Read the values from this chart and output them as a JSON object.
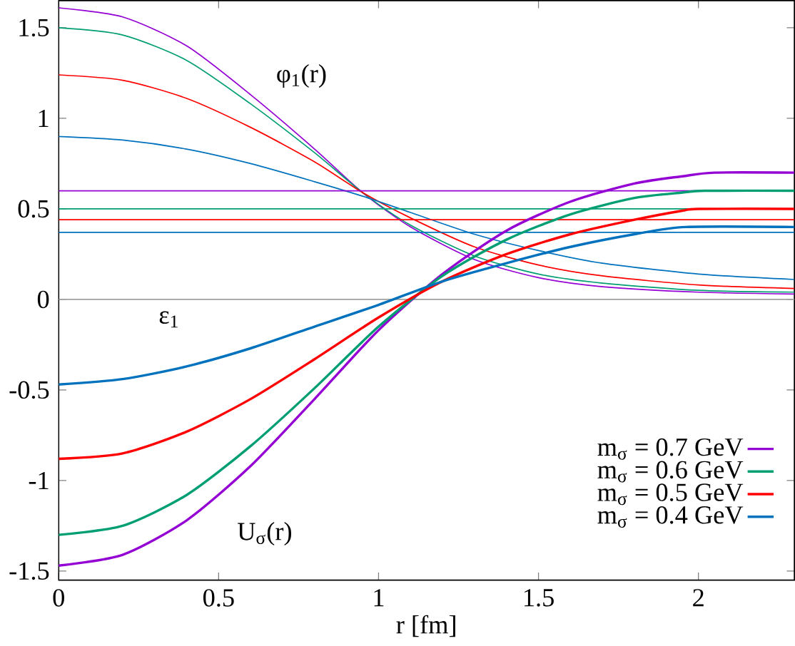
{
  "chart_data": {
    "type": "line",
    "xlabel": "r [fm]",
    "xlim": [
      0,
      2.3
    ],
    "ylim": [
      -1.55,
      1.65
    ],
    "xticks": [
      0,
      0.5,
      1,
      1.5,
      2
    ],
    "yticks": [
      -1.5,
      -1,
      -0.5,
      0,
      0.5,
      1,
      1.5
    ],
    "grid": false,
    "legend": "bottom right",
    "marker": "none",
    "line_style": "solid",
    "ref_lines": [
      {
        "axis": "y",
        "value": 0,
        "color": "#a0a0a0"
      }
    ],
    "annotations": [
      "φ$_{1}$(r)",
      "ε$_{1}$",
      "U$_{σ}$(r)"
    ],
    "series": [
      {
        "color": "#9400d3",
        "x": [
          0,
          0.2,
          0.4,
          0.6,
          0.8,
          0.95,
          1.1,
          1.3,
          1.5,
          1.7,
          2.0,
          2.3
        ],
        "values": [
          1.61,
          1.56,
          1.4,
          1.13,
          0.83,
          0.59,
          0.4,
          0.22,
          0.12,
          0.07,
          0.04,
          0.03
        ]
      },
      {
        "color": "#009e73",
        "x": [
          0,
          0.2,
          0.4,
          0.6,
          0.8,
          0.95,
          1.1,
          1.3,
          1.5,
          1.7,
          2.0,
          2.3
        ],
        "values": [
          1.5,
          1.46,
          1.32,
          1.08,
          0.81,
          0.59,
          0.41,
          0.24,
          0.14,
          0.09,
          0.05,
          0.04
        ]
      },
      {
        "color": "#ff0000",
        "x": [
          0,
          0.2,
          0.4,
          0.6,
          0.8,
          0.95,
          1.1,
          1.3,
          1.5,
          1.7,
          2.0,
          2.3
        ],
        "values": [
          1.24,
          1.21,
          1.11,
          0.95,
          0.76,
          0.59,
          0.45,
          0.29,
          0.19,
          0.13,
          0.08,
          0.06
        ]
      },
      {
        "color": "#0072bd",
        "x": [
          0,
          0.2,
          0.4,
          0.6,
          0.8,
          0.95,
          1.1,
          1.3,
          1.5,
          1.7,
          2.0,
          2.3
        ],
        "values": [
          0.9,
          0.88,
          0.83,
          0.75,
          0.65,
          0.57,
          0.48,
          0.36,
          0.27,
          0.2,
          0.14,
          0.11
        ]
      },
      {
        "color": "#9400d3",
        "x": [
          0,
          2.3
        ],
        "values": [
          0.6,
          0.6
        ]
      },
      {
        "color": "#009e73",
        "x": [
          0,
          2.3
        ],
        "values": [
          0.5,
          0.5
        ]
      },
      {
        "color": "#ff0000",
        "x": [
          0,
          2.3
        ],
        "values": [
          0.44,
          0.44
        ]
      },
      {
        "color": "#0072bd",
        "x": [
          0,
          2.3
        ],
        "values": [
          0.37,
          0.37
        ]
      },
      {
        "name": "m$_{σ}$ = 0.7 GeV",
        "color": "#9400d3",
        "x": [
          0,
          0.2,
          0.4,
          0.6,
          0.8,
          1.0,
          1.2,
          1.4,
          1.6,
          1.8,
          1.95,
          2.05,
          2.3
        ],
        "values": [
          -1.47,
          -1.41,
          -1.22,
          -0.92,
          -0.55,
          -0.17,
          0.14,
          0.38,
          0.54,
          0.64,
          0.68,
          0.7,
          0.7
        ]
      },
      {
        "name": "m$_{σ}$ = 0.6 GeV",
        "color": "#009e73",
        "x": [
          0,
          0.2,
          0.4,
          0.6,
          0.8,
          1.0,
          1.2,
          1.4,
          1.6,
          1.8,
          1.95,
          2.02,
          2.3
        ],
        "values": [
          -1.3,
          -1.25,
          -1.08,
          -0.81,
          -0.49,
          -0.15,
          0.13,
          0.33,
          0.47,
          0.56,
          0.59,
          0.6,
          0.6
        ]
      },
      {
        "name": "m$_{σ}$ = 0.5 GeV",
        "color": "#ff0000",
        "x": [
          0,
          0.2,
          0.4,
          0.6,
          0.8,
          1.0,
          1.2,
          1.4,
          1.6,
          1.8,
          1.95,
          2.0,
          2.3
        ],
        "values": [
          -0.88,
          -0.85,
          -0.73,
          -0.55,
          -0.33,
          -0.1,
          0.1,
          0.25,
          0.36,
          0.44,
          0.49,
          0.5,
          0.5
        ]
      },
      {
        "name": "m$_{σ}$ = 0.4 GeV",
        "color": "#0072bd",
        "x": [
          0,
          0.2,
          0.4,
          0.6,
          0.8,
          1.0,
          1.2,
          1.4,
          1.6,
          1.8,
          1.96,
          2.3
        ],
        "values": [
          -0.47,
          -0.44,
          -0.37,
          -0.27,
          -0.15,
          -0.03,
          0.1,
          0.2,
          0.29,
          0.36,
          0.4,
          0.4
        ]
      }
    ]
  }
}
